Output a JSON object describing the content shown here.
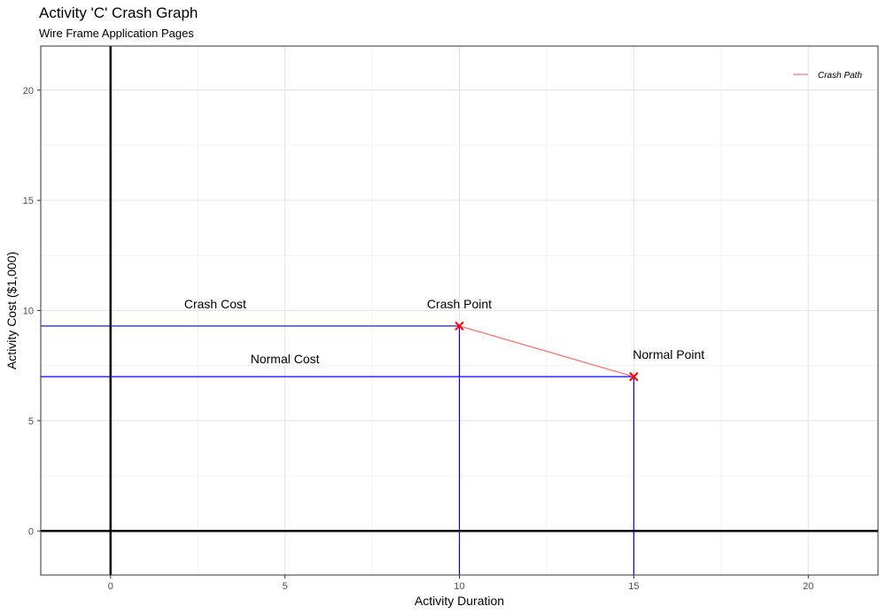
{
  "chart_data": {
    "type": "line",
    "title": "Activity 'C' Crash Graph",
    "subtitle": "Wire Frame Application Pages",
    "xlabel": "Activity Duration",
    "ylabel": "Activity Cost ($1,000)",
    "xlim": [
      -2,
      22
    ],
    "ylim": [
      -2,
      22
    ],
    "x_ticks": [
      "0",
      "5",
      "10",
      "15",
      "20"
    ],
    "y_ticks": [
      "0",
      "5",
      "10",
      "15",
      "20"
    ],
    "grid": true,
    "legend": {
      "position": "top-right",
      "entries": [
        "Crash Path"
      ]
    },
    "colors": {
      "crash_path": "#f8766d",
      "reference_lines": "#0000ff",
      "points": "#ff0000",
      "axes": "#000000"
    },
    "series": [
      {
        "name": "Crash Path",
        "x": [
          10,
          15
        ],
        "y": [
          9.3,
          7.0
        ]
      }
    ],
    "points": [
      {
        "x": 10,
        "y": 9.3
      },
      {
        "x": 15,
        "y": 7.0
      }
    ],
    "annotations": [
      {
        "text": "Crash Cost",
        "x": 3,
        "y": 10.1
      },
      {
        "text": "Normal Cost",
        "x": 5,
        "y": 7.6
      },
      {
        "text": "Crash Point",
        "x": 10,
        "y": 10.1
      },
      {
        "text": "Normal Point",
        "x": 16,
        "y": 7.8
      }
    ],
    "reference_lines": [
      {
        "kind": "horizontal",
        "y": 9.3,
        "x_from": -2,
        "x_to": 10
      },
      {
        "kind": "horizontal",
        "y": 7.0,
        "x_from": -2,
        "x_to": 15
      },
      {
        "kind": "vertical",
        "x": 10,
        "y_from": -2,
        "y_to": 9.3
      },
      {
        "kind": "vertical",
        "x": 15,
        "y_from": -2,
        "y_to": 7.0
      }
    ]
  }
}
